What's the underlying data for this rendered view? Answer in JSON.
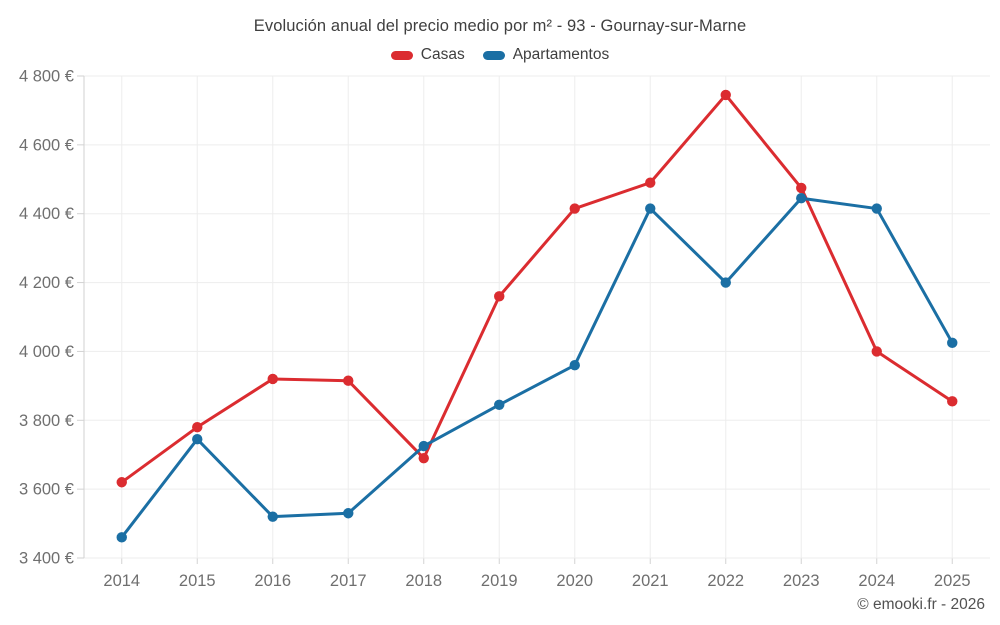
{
  "attribution": "© emooki.fr - 2026",
  "chart_data": {
    "type": "line",
    "title": "Evolución anual del precio medio por m² - 93 - Gournay-sur-Marne",
    "x": [
      2014,
      2015,
      2016,
      2017,
      2018,
      2019,
      2020,
      2021,
      2022,
      2023,
      2024,
      2025
    ],
    "x_labels": [
      "2014",
      "2015",
      "2016",
      "2017",
      "2018",
      "2019",
      "2020",
      "2021",
      "2022",
      "2023",
      "2024",
      "2025"
    ],
    "ylim": [
      3400,
      4800
    ],
    "ytick_step": 200,
    "yticks": [
      {
        "value": 3400,
        "label": "3 400 €"
      },
      {
        "value": 3600,
        "label": "3 600 €"
      },
      {
        "value": 3800,
        "label": "3 800 €"
      },
      {
        "value": 4000,
        "label": "4 000 €"
      },
      {
        "value": 4200,
        "label": "4 200 €"
      },
      {
        "value": 4400,
        "label": "4 400 €"
      },
      {
        "value": 4600,
        "label": "4 600 €"
      },
      {
        "value": 4800,
        "label": "4 800 €"
      }
    ],
    "grid": true,
    "legend_position": "top",
    "currency": "€",
    "series": [
      {
        "name": "Casas",
        "color": "#db2c30",
        "values": [
          3620,
          3780,
          3920,
          3915,
          3690,
          4160,
          4415,
          4490,
          4745,
          4475,
          4000,
          3855
        ]
      },
      {
        "name": "Apartamentos",
        "color": "#1b6fa4",
        "values": [
          3460,
          3745,
          3520,
          3530,
          3725,
          3845,
          3960,
          4415,
          4200,
          4445,
          4415,
          4025
        ]
      }
    ]
  },
  "style": {
    "grid_color": "#ededed",
    "axis_color": "#d2d2d2",
    "tick_label_color": "#6f6f6f",
    "title_color": "#3f3f3f"
  }
}
